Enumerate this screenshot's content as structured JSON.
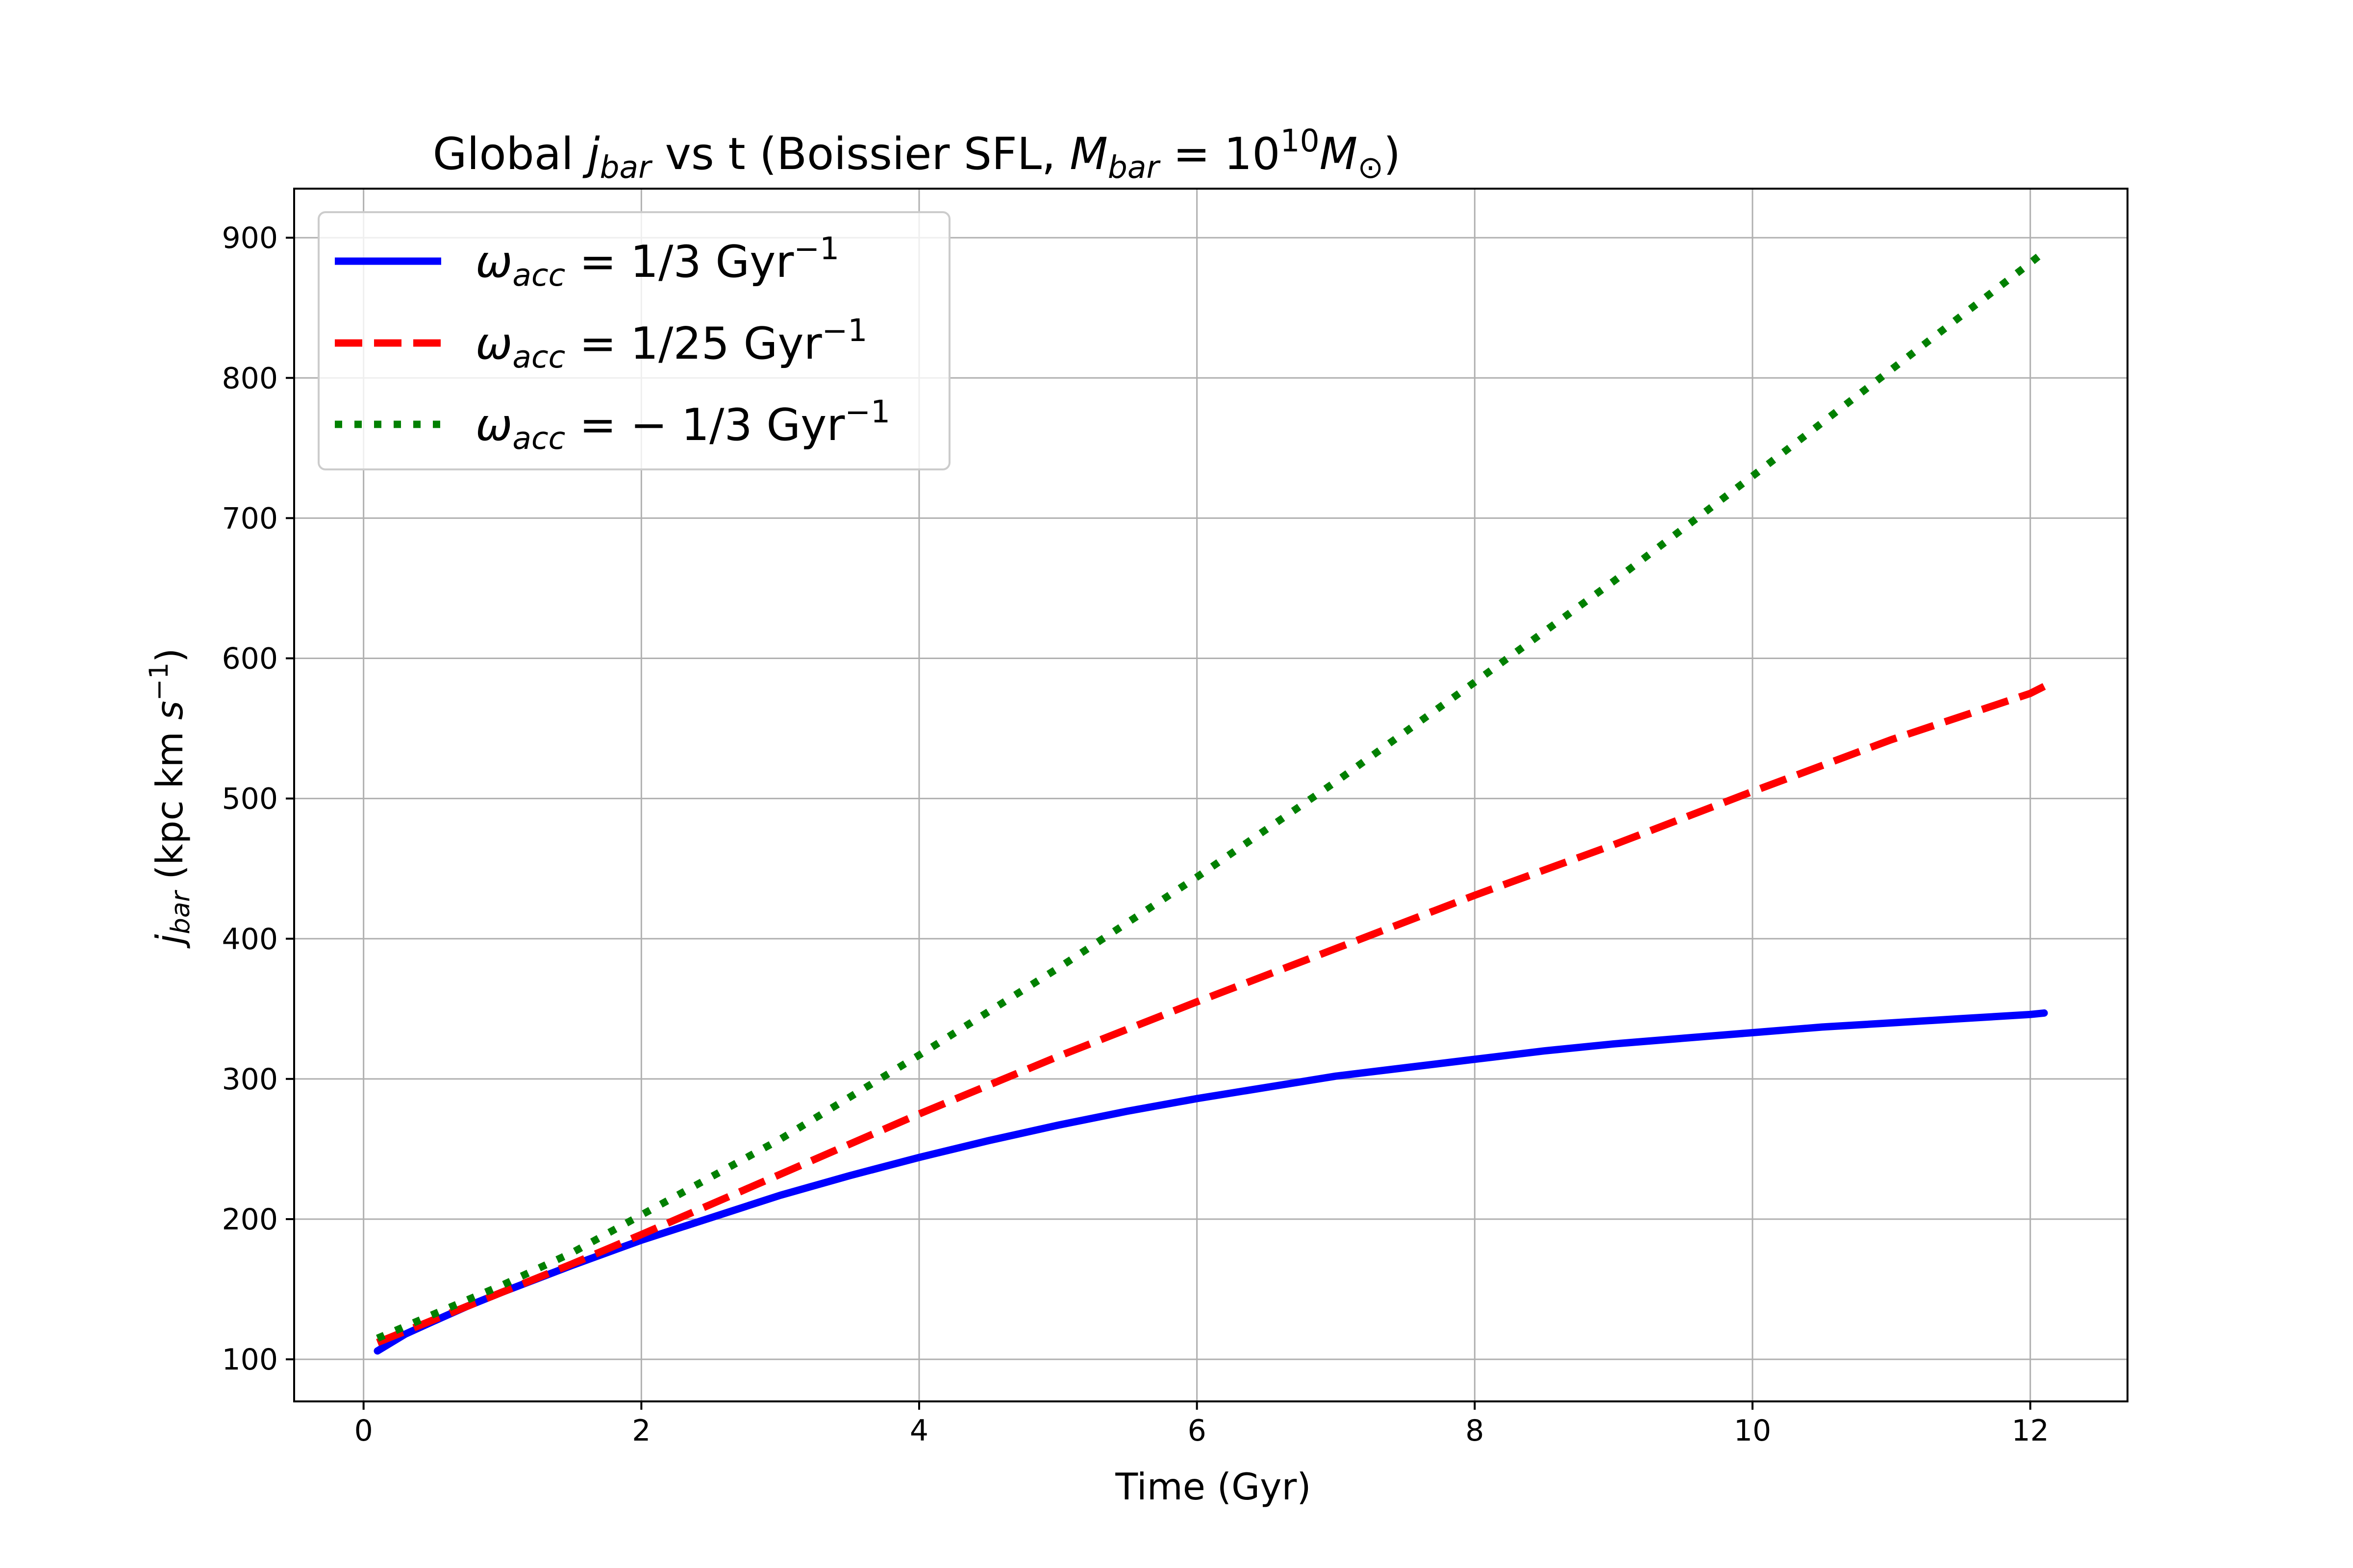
{
  "chart_data": {
    "type": "line",
    "title": {
      "prefix": "Global ",
      "j": "j",
      "j_sub": "bar",
      "middle": " vs t (Boissier SFL, ",
      "M": "M",
      "M_sub": "bar",
      "equals": " = 10",
      "exponent": "10",
      "M_unit": "M",
      "M_unit_sub": "⊙",
      "suffix": ")"
    },
    "xlabel": "Time (Gyr)",
    "ylabel": {
      "j": "j",
      "j_sub": "bar",
      "units": " (kpc km ",
      "s": "s",
      "s_exp": "−1",
      "close": ")"
    },
    "xlim": [
      -0.5,
      12.7
    ],
    "ylim": [
      70,
      935
    ],
    "xticks": [
      0,
      2,
      4,
      6,
      8,
      10,
      12
    ],
    "yticks": [
      100,
      200,
      300,
      400,
      500,
      600,
      700,
      800,
      900
    ],
    "grid": true,
    "legend_position": "top-left",
    "series": [
      {
        "name": "omega_acc = 1/3 Gyr^-1",
        "legend": {
          "omega": "ω",
          "sub": "acc",
          "eq": " = 1/3 Gyr",
          "exp": "−1"
        },
        "color": "#0000ff",
        "style": "solid",
        "x": [
          0.1,
          0.2,
          0.3,
          0.5,
          0.75,
          1,
          1.5,
          2,
          2.5,
          3,
          3.5,
          4,
          4.5,
          5,
          5.5,
          6,
          6.5,
          7,
          7.5,
          8,
          8.5,
          9,
          9.5,
          10,
          10.5,
          11,
          11.5,
          12,
          12.1
        ],
        "y": [
          106,
          112,
          118,
          127,
          138,
          148,
          167,
          185,
          201,
          217,
          231,
          244,
          256,
          267,
          277,
          286,
          294,
          302,
          308,
          314,
          320,
          325,
          329,
          333,
          337,
          340,
          343,
          346,
          347
        ]
      },
      {
        "name": "omega_acc = 1/25 Gyr^-1",
        "legend": {
          "omega": "ω",
          "sub": "acc",
          "eq": " = 1/25 Gyr",
          "exp": "−1"
        },
        "color": "#ff0000",
        "style": "dashed",
        "x": [
          0.1,
          0.5,
          1,
          1.5,
          2,
          3,
          4,
          5,
          6,
          7,
          8,
          9,
          10,
          11,
          12,
          12.1
        ],
        "y": [
          112,
          128,
          148,
          168,
          189,
          232,
          275,
          316,
          355,
          393,
          431,
          467,
          505,
          542,
          575,
          580
        ]
      },
      {
        "name": "omega_acc = -1/3 Gyr^-1",
        "legend": {
          "omega": "ω",
          "sub": "acc",
          "eq": " = − 1/3 Gyr",
          "exp": "−1"
        },
        "color": "#008000",
        "style": "dotted",
        "x": [
          0.1,
          0.5,
          1,
          1.5,
          2,
          3,
          4,
          5,
          6,
          7,
          8,
          9,
          10,
          11,
          12,
          12.1
        ],
        "y": [
          115,
          132,
          153,
          176,
          203,
          257,
          317,
          379,
          444,
          512,
          583,
          655,
          730,
          806,
          882,
          890
        ]
      }
    ]
  }
}
